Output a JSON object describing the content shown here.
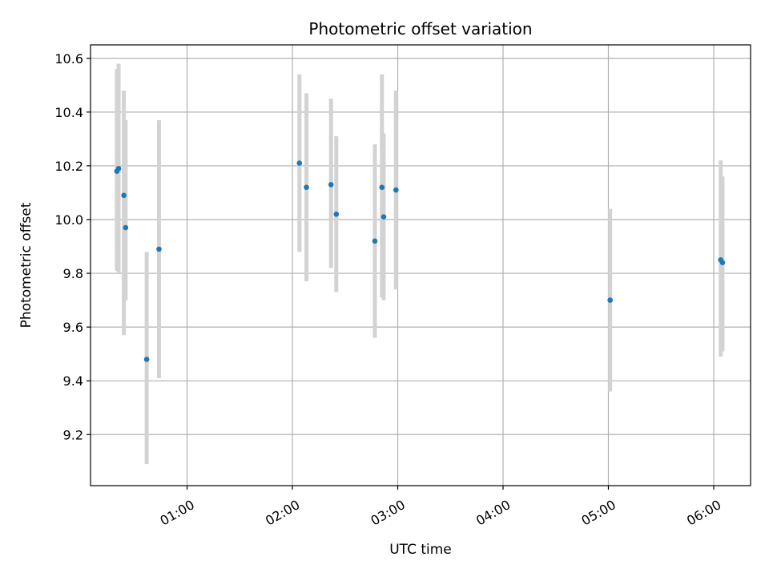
{
  "chart_data": {
    "type": "scatter",
    "title": "Photometric offset variation",
    "xlabel": "UTC time",
    "ylabel": "Photometric offset",
    "x_unit": "hours UTC",
    "xlim": [
      "00:05",
      "06:21"
    ],
    "ylim": [
      9.01,
      10.65
    ],
    "x_ticks": [
      "01:00",
      "02:00",
      "03:00",
      "04:00",
      "05:00",
      "06:00"
    ],
    "y_ticks": [
      "9.2",
      "9.4",
      "9.6",
      "9.8",
      "10.0",
      "10.2",
      "10.4",
      "10.6"
    ],
    "grid": true,
    "marker_color": "#1f77b4",
    "errorbar_color": "#d3d3d3",
    "points": [
      {
        "t": "00:20",
        "y": 10.18,
        "low": 9.81,
        "high": 10.56
      },
      {
        "t": "00:21",
        "y": 10.19,
        "low": 9.8,
        "high": 10.58
      },
      {
        "t": "00:24",
        "y": 10.09,
        "low": 9.57,
        "high": 10.48
      },
      {
        "t": "00:25",
        "y": 9.97,
        "low": 9.7,
        "high": 10.37
      },
      {
        "t": "00:37",
        "y": 9.48,
        "low": 9.09,
        "high": 9.88
      },
      {
        "t": "00:44",
        "y": 9.89,
        "low": 9.41,
        "high": 10.37
      },
      {
        "t": "02:04",
        "y": 10.21,
        "low": 9.88,
        "high": 10.54
      },
      {
        "t": "02:08",
        "y": 10.12,
        "low": 9.77,
        "high": 10.47
      },
      {
        "t": "02:22",
        "y": 10.13,
        "low": 9.82,
        "high": 10.45
      },
      {
        "t": "02:25",
        "y": 10.02,
        "low": 9.73,
        "high": 10.31
      },
      {
        "t": "02:47",
        "y": 9.92,
        "low": 9.56,
        "high": 10.28
      },
      {
        "t": "02:51",
        "y": 10.12,
        "low": 9.71,
        "high": 10.54
      },
      {
        "t": "02:52",
        "y": 10.01,
        "low": 9.7,
        "high": 10.32
      },
      {
        "t": "02:59",
        "y": 10.11,
        "low": 9.74,
        "high": 10.48
      },
      {
        "t": "05:01",
        "y": 9.7,
        "low": 9.36,
        "high": 10.04
      },
      {
        "t": "06:04",
        "y": 9.85,
        "low": 9.49,
        "high": 10.22
      },
      {
        "t": "06:05",
        "y": 9.84,
        "low": 9.51,
        "high": 10.16
      }
    ]
  }
}
